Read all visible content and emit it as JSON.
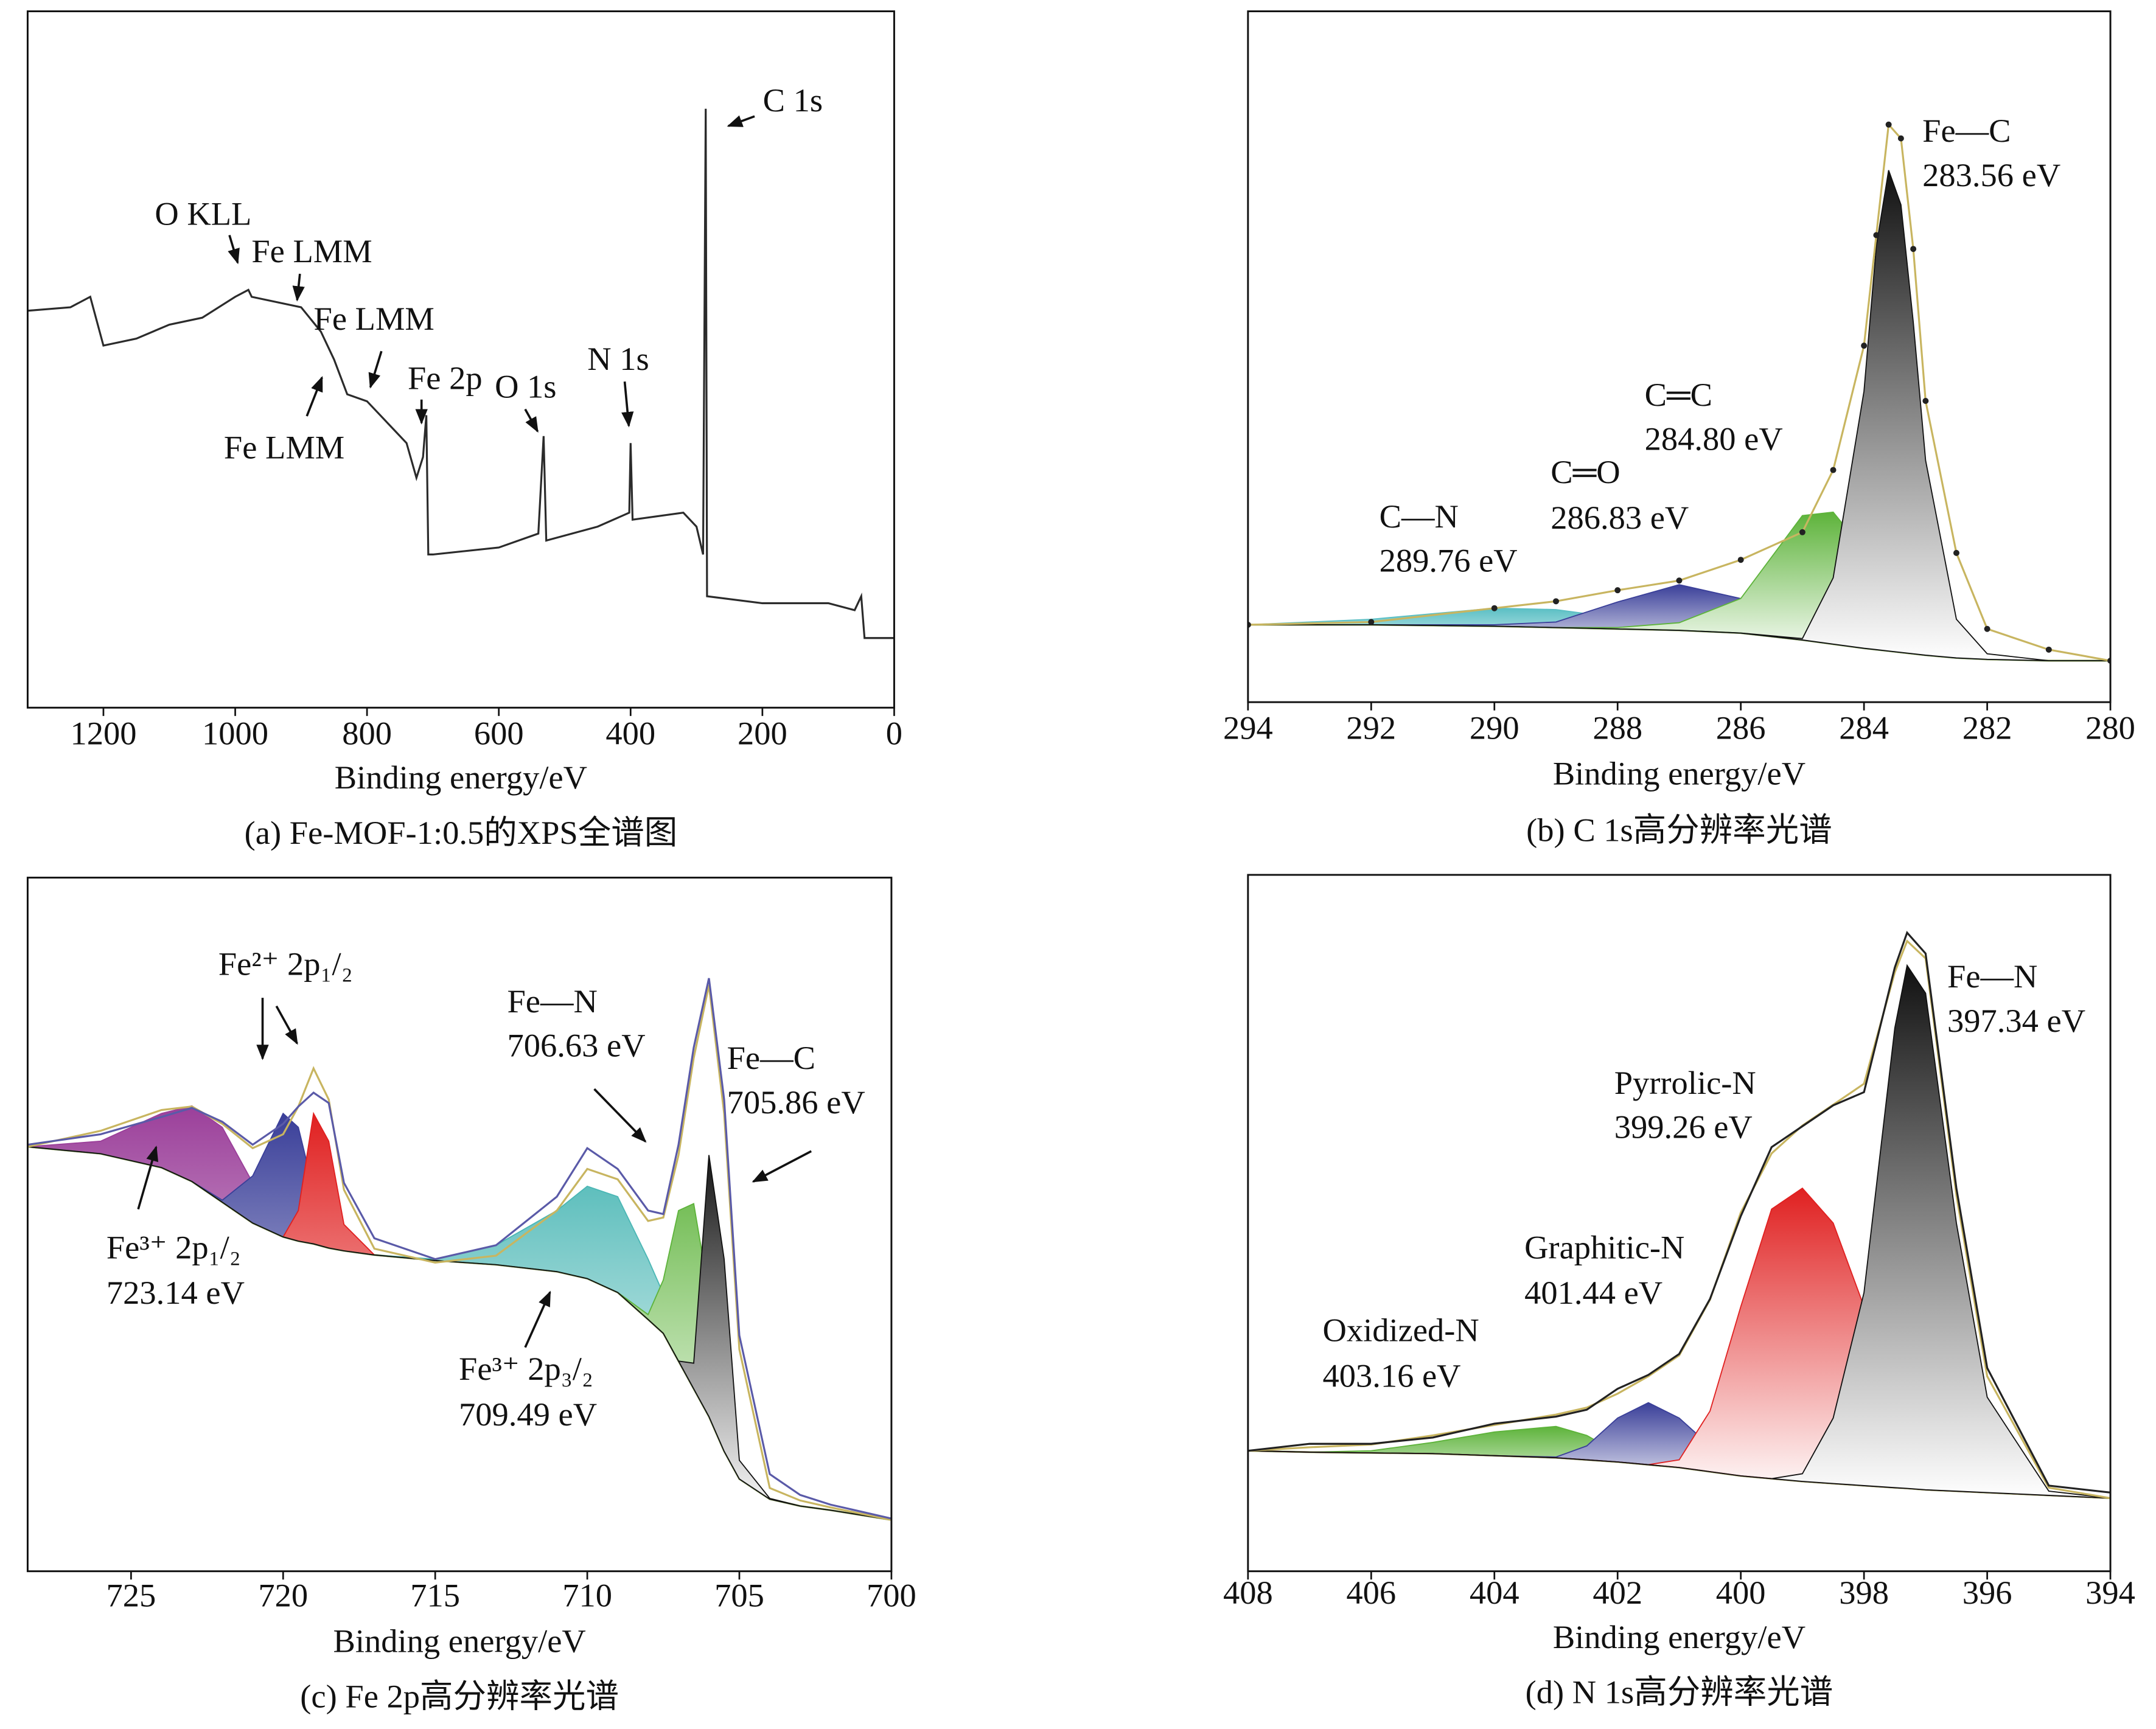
{
  "chart_data": [
    {
      "type": "line",
      "caption": "(a) Fe-MOF-1:0.5的XPS全谱图",
      "xlabel": "Binding energy/eV",
      "xlim": [
        1315,
        0
      ],
      "xticks": [
        1200,
        1000,
        800,
        600,
        400,
        200,
        0
      ],
      "ylim": [
        0,
        100
      ],
      "x": [
        1315,
        1250,
        1220,
        1200,
        1150,
        1100,
        1050,
        1000,
        980,
        975,
        900,
        870,
        850,
        830,
        800,
        780,
        760,
        740,
        725,
        715,
        710,
        707,
        700,
        600,
        540,
        532,
        528,
        450,
        402,
        400,
        397,
        320,
        300,
        290,
        286,
        284,
        200,
        100,
        60,
        50,
        45,
        0
      ],
      "series": [
        {
          "color": "#2b2b2b",
          "style": "line",
          "values": [
            57,
            57.5,
            59,
            52,
            53,
            55,
            56,
            59,
            60,
            59,
            57.5,
            54,
            50,
            45,
            44,
            42,
            40,
            38,
            33,
            36,
            42,
            22,
            22,
            23,
            25,
            39,
            24,
            26,
            28,
            38,
            27,
            28,
            26,
            22,
            86,
            16,
            15,
            15,
            14,
            16,
            10,
            10
          ]
        }
      ],
      "annotations": [
        {
          "lines": [
            "C 1s"
          ]
        },
        {
          "lines": [
            "O KLL"
          ]
        },
        {
          "lines": [
            "Fe LMM"
          ]
        },
        {
          "lines": [
            "Fe LMM"
          ]
        },
        {
          "lines": [
            "Fe LMM"
          ]
        },
        {
          "lines": [
            "Fe 2p"
          ]
        },
        {
          "lines": [
            "O 1s"
          ]
        },
        {
          "lines": [
            "N 1s"
          ]
        }
      ]
    },
    {
      "type": "line",
      "caption": "(b) C 1s高分辨率光谱",
      "xlabel": "Binding energy/eV",
      "xlim": [
        294,
        280
      ],
      "xticks": [
        294,
        292,
        290,
        288,
        286,
        284,
        282,
        280
      ],
      "ylim": [
        0,
        100
      ],
      "x": [
        294,
        292,
        290,
        289,
        288,
        287,
        286,
        285,
        284.5,
        284,
        283.8,
        283.6,
        283.4,
        283.2,
        283,
        282.5,
        282,
        281,
        280
      ],
      "series": [
        {
          "color": "#9fb06a",
          "style": "line",
          "values": [
            11.2,
            11.2,
            11,
            10.8,
            10.6,
            10.4,
            10,
            9,
            8.4,
            7.8,
            7.6,
            7.4,
            7.2,
            7,
            6.8,
            6.4,
            6.2,
            6,
            6
          ]
        },
        {
          "color": "#5bbfc4",
          "style": "fill",
          "values": [
            11.2,
            12,
            13.6,
            13.4,
            12.2,
            11,
            10.2,
            9,
            8.4,
            7.8,
            7.6,
            7.4,
            7.2,
            7,
            6.8,
            6.4,
            6.2,
            6,
            6
          ]
        },
        {
          "color": "#3a3f99",
          "style": "fill",
          "values": [
            11.2,
            11.2,
            11.2,
            11.6,
            14.5,
            17,
            15,
            10.5,
            8.8,
            7.8,
            7.6,
            7.4,
            7.2,
            7,
            6.8,
            6.4,
            6.2,
            6,
            6
          ]
        },
        {
          "color": "#5db33a",
          "style": "fill",
          "values": [
            11.2,
            11.2,
            11,
            10.8,
            10.8,
            11.5,
            15,
            27,
            27.5,
            22,
            18,
            14,
            11,
            9,
            7.5,
            6.5,
            6.2,
            6,
            6
          ]
        },
        {
          "color": "#111111",
          "style": "fill",
          "values": [
            11.2,
            11.2,
            11,
            10.8,
            10.6,
            10.4,
            10,
            9.2,
            18,
            45,
            66,
            77,
            72,
            55,
            35,
            12,
            7,
            6,
            6
          ]
        },
        {
          "color": "#c8b560",
          "style": "line",
          "values": [
            11.2,
            11.6,
            13.6,
            14.6,
            16.2,
            17.6,
            20.6,
            24.6,
            33.6,
            51.6,
            67.6,
            83.6,
            81.6,
            65.6,
            43.6,
            21.6,
            10.6,
            7.6,
            6
          ]
        },
        {
          "color": "#222222",
          "style": "dots",
          "values": [
            11.2,
            11.6,
            13.6,
            14.6,
            16.2,
            17.6,
            20.6,
            24.6,
            33.6,
            51.6,
            67.6,
            83.6,
            81.6,
            65.6,
            43.6,
            21.6,
            10.6,
            7.6,
            6
          ]
        }
      ],
      "annotations": [
        {
          "lines": [
            "Fe—C",
            "283.56 eV"
          ]
        },
        {
          "lines": [
            "C═C",
            "284.80 eV"
          ]
        },
        {
          "lines": [
            "C═O",
            "286.83 eV"
          ]
        },
        {
          "lines": [
            "C—N",
            "289.76 eV"
          ]
        }
      ]
    },
    {
      "type": "line",
      "caption": "(c) Fe 2p高分辨率光谱",
      "xlabel": "Binding energy/eV",
      "xlim": [
        728.4,
        700
      ],
      "xticks": [
        725,
        720,
        715,
        710,
        705,
        700
      ],
      "ylim": [
        0,
        100
      ],
      "x": [
        728.4,
        726,
        724,
        723,
        722,
        721,
        720,
        719.5,
        719,
        718.5,
        718,
        717,
        715,
        713,
        711,
        710,
        709,
        708,
        707.5,
        707,
        706.5,
        706,
        705.5,
        705,
        704,
        703,
        702,
        700
      ],
      "series": [
        {
          "color": "#9fb06a",
          "style": "line",
          "values": [
            61.2,
            60.2,
            58.2,
            56.2,
            53.2,
            50.2,
            48.2,
            47.6,
            47.2,
            46.6,
            46.2,
            45.6,
            44.8,
            44.2,
            43.2,
            42.2,
            40.2,
            36.3,
            34.3,
            30.3,
            26.3,
            22.3,
            17.3,
            13.3,
            10.4,
            9.4,
            8.8,
            7.4
          ]
        },
        {
          "color": "#9b3f9a",
          "style": "fill",
          "values": [
            61.2,
            62,
            66,
            67.1,
            64,
            56,
            50,
            48,
            47.2,
            46.6,
            46.2,
            45.6,
            44.8,
            44.2,
            43.2,
            42.2,
            40.2,
            36.3,
            34.3,
            30.3,
            26.3,
            22.3,
            17.3,
            13.3,
            10.4,
            9.4,
            8.8,
            7.4
          ]
        },
        {
          "color": "#3a3f99",
          "style": "fill",
          "values": [
            61.2,
            60.2,
            58.2,
            56.2,
            53.5,
            57,
            66,
            64,
            55,
            48,
            46.3,
            45.6,
            44.8,
            44.2,
            43.2,
            42.2,
            40.2,
            36.3,
            34.3,
            30.3,
            26.3,
            22.3,
            17.3,
            13.3,
            10.4,
            9.4,
            8.8,
            7.4
          ]
        },
        {
          "color": "#e02020",
          "style": "fill",
          "values": [
            61.2,
            60.2,
            58.2,
            56.2,
            53.2,
            50.2,
            48.2,
            52,
            66,
            62,
            50,
            45.6,
            44.8,
            44.2,
            43.2,
            42.2,
            40.2,
            36.3,
            34.3,
            30.3,
            26.3,
            22.3,
            17.3,
            13.3,
            10.4,
            9.4,
            8.8,
            7.4
          ]
        },
        {
          "color": "#4bb7b5",
          "style": "fill",
          "values": [
            61.2,
            60.2,
            58.2,
            56.2,
            53.2,
            50.2,
            48.2,
            47.6,
            47.2,
            46.6,
            46.2,
            45.6,
            45,
            47,
            52,
            55.5,
            54,
            45,
            40,
            32,
            27,
            22.3,
            17.3,
            13.3,
            10.4,
            9.4,
            8.8,
            7.4
          ]
        },
        {
          "color": "#5db33a",
          "style": "fill",
          "values": [
            61.2,
            60.2,
            58.2,
            56.2,
            53.2,
            50.2,
            48.2,
            47.6,
            47.2,
            46.6,
            46.2,
            45.6,
            44.8,
            44.2,
            43.2,
            42.2,
            40.2,
            37,
            42,
            52,
            53,
            40,
            22,
            14,
            10.4,
            9.4,
            8.8,
            7.4
          ]
        },
        {
          "color": "#111111",
          "style": "fill",
          "values": [
            61.2,
            60.2,
            58.2,
            56.2,
            53.2,
            50.2,
            48.2,
            47.6,
            47.2,
            46.6,
            46.2,
            45.6,
            44.8,
            44.2,
            43.2,
            42.2,
            40.2,
            36.3,
            34.3,
            30.3,
            30,
            60,
            45,
            16,
            10.5,
            9.4,
            8.8,
            7.4
          ]
        },
        {
          "color": "#c8b560",
          "style": "line",
          "values": [
            61.2,
            63.5,
            66.5,
            67,
            64.5,
            61,
            63,
            67,
            72.5,
            68,
            55,
            46.5,
            44.5,
            45.5,
            52,
            58,
            56.5,
            50.5,
            51,
            60,
            74,
            84.5,
            66,
            32,
            12,
            10.2,
            9.2,
            7.4
          ]
        },
        {
          "color": "#5a5aa8",
          "style": "line",
          "values": [
            61.5,
            63,
            65.5,
            66.8,
            64.8,
            61.5,
            64.5,
            67,
            69,
            67.5,
            56,
            48,
            45,
            47,
            54,
            61,
            58,
            52,
            51.5,
            61.5,
            75.5,
            85.5,
            68,
            34,
            14,
            11,
            9.6,
            7.6
          ]
        }
      ],
      "annotations": [
        {
          "lines": [
            "Fe²⁺ 2p₁/₂"
          ]
        },
        {
          "lines": [
            "Fe—N",
            "706.63 eV"
          ]
        },
        {
          "lines": [
            "Fe—C",
            "705.86 eV"
          ]
        },
        {
          "lines": [
            "Fe³⁺ 2p₁/₂",
            "723.14 eV"
          ]
        },
        {
          "lines": [
            "Fe³⁺ 2p₃/₂",
            "709.49 eV"
          ]
        }
      ]
    },
    {
      "type": "line",
      "caption": "(d) N 1s高分辨率光谱",
      "xlabel": "Binding energy/eV",
      "xlim": [
        408,
        394
      ],
      "xticks": [
        408,
        406,
        404,
        402,
        400,
        398,
        396,
        394
      ],
      "ylim": [
        0,
        100
      ],
      "x": [
        408,
        407,
        406,
        405,
        404,
        403,
        402.5,
        402,
        401.5,
        401,
        400.5,
        400,
        399.5,
        399,
        398.5,
        398,
        397.5,
        397.3,
        397,
        396.5,
        396,
        395,
        394
      ],
      "series": [
        {
          "color": "#9fb06a",
          "style": "line",
          "values": [
            17.3,
            17.1,
            17,
            16.9,
            16.6,
            16.3,
            16,
            15.7,
            15.3,
            14.9,
            14.3,
            13.7,
            13.3,
            12.9,
            12.6,
            12.3,
            12,
            11.9,
            11.7,
            11.5,
            11.3,
            10.9,
            10.5
          ]
        },
        {
          "color": "#5db33a",
          "style": "fill",
          "values": [
            17.3,
            17.1,
            17.3,
            18.5,
            20,
            20.8,
            19.5,
            17,
            15.5,
            14.9,
            14.3,
            13.7,
            13.3,
            12.9,
            12.6,
            12.3,
            12,
            11.9,
            11.7,
            11.5,
            11.3,
            10.9,
            10.5
          ]
        },
        {
          "color": "#3a3f99",
          "style": "fill",
          "values": [
            17.3,
            17.1,
            17,
            16.9,
            16.6,
            16.4,
            18,
            22,
            24.2,
            22,
            18,
            15,
            13.5,
            12.9,
            12.6,
            12.3,
            12,
            11.9,
            11.7,
            11.5,
            11.3,
            10.9,
            10.5
          ]
        },
        {
          "color": "#e02020",
          "style": "fill",
          "values": [
            17.3,
            17.1,
            17,
            16.9,
            16.6,
            16.3,
            16,
            15.7,
            15.3,
            16,
            23,
            38,
            52,
            55,
            50,
            38,
            25,
            20,
            16,
            12.5,
            11.5,
            10.9,
            10.5
          ]
        },
        {
          "color": "#111111",
          "style": "fill",
          "values": [
            17.3,
            17.1,
            17,
            16.9,
            16.6,
            16.3,
            16,
            15.7,
            15.3,
            14.9,
            14.3,
            13.7,
            13.3,
            14,
            22,
            40,
            78,
            87,
            83,
            50,
            25,
            11.5,
            10.5
          ]
        },
        {
          "color": "#c8b560",
          "style": "line",
          "values": [
            17.3,
            17.8,
            18.2,
            19.5,
            21,
            22.5,
            23.5,
            25.5,
            28,
            31,
            39,
            51.5,
            60,
            64,
            67,
            70,
            86,
            90.5,
            88,
            54,
            28,
            12,
            10.5
          ]
        },
        {
          "color": "#222222",
          "style": "line",
          "values": [
            17.3,
            18.3,
            18.3,
            19.2,
            21.2,
            22.2,
            23.2,
            26.2,
            28.2,
            31.2,
            39.1,
            51,
            60.9,
            63.9,
            66.9,
            68.8,
            86.7,
            91.7,
            88.7,
            55,
            29.2,
            12.3,
            11.3
          ]
        }
      ],
      "annotations": [
        {
          "lines": [
            "Fe—N",
            "397.34 eV"
          ]
        },
        {
          "lines": [
            "Pyrrolic-N",
            "399.26 eV"
          ]
        },
        {
          "lines": [
            "Graphitic-N",
            "401.44 eV"
          ]
        },
        {
          "lines": [
            "Oxidized-N",
            "403.16 eV"
          ]
        }
      ]
    }
  ]
}
